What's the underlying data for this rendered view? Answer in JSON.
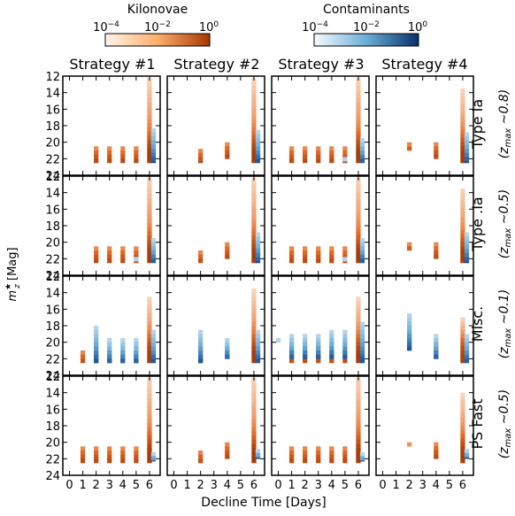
{
  "colorbars": {
    "kilonovae": {
      "title": "Kilonovae",
      "ticks": [
        "10^-4",
        "10^-2",
        "10^0"
      ],
      "color_light": "#fff5eb",
      "color_dark": "#d94801"
    },
    "contaminants": {
      "title": "Contaminants",
      "ticks": [
        "10^-4",
        "10^-2",
        "10^0"
      ],
      "color_light": "#f7fbff",
      "color_dark": "#08306b"
    }
  },
  "strategies": [
    "Strategy #1",
    "Strategy #2",
    "Strategy #3",
    "Strategy #4"
  ],
  "rows": [
    {
      "label": "Type Ia",
      "zlabel": "(z_max ~0.8)"
    },
    {
      "label": "Type .Ia",
      "zlabel": "(z_max ~0.5)"
    },
    {
      "label": "Misc.",
      "zlabel": "(z_max ~0.1)"
    },
    {
      "label": "PS Fast",
      "zlabel": "(z_max ~0.5)"
    }
  ],
  "ylabel": "m_z^* [Mag]",
  "xlabel": "Decline Time [Days]",
  "chart_data": {
    "type": "heatmap",
    "x_ticks": [
      "0",
      "1",
      "2",
      "3",
      "4",
      "5",
      "6"
    ],
    "y_ticks": [
      "12",
      "14",
      "16",
      "18",
      "20",
      "22",
      "24"
    ],
    "xlim": [
      -0.5,
      6.8
    ],
    "ylim": [
      24,
      12
    ],
    "y_inverted": true,
    "bin_width_days": 0.35,
    "bin_height_mag": 0.5,
    "cells": [
      {
        "row": 0,
        "col": 0,
        "kn": [
          [
            2,
            20.5,
            22.5
          ],
          [
            3,
            20.5,
            22.5
          ],
          [
            4,
            20.5,
            22.5
          ],
          [
            5,
            20.5,
            22.5
          ],
          [
            6,
            12.2,
            22.5
          ]
        ],
        "cont": [
          [
            6.3,
            18.3,
            22.5
          ]
        ]
      },
      {
        "row": 0,
        "col": 1,
        "kn": [
          [
            2,
            20.8,
            22.5
          ],
          [
            4,
            20,
            22
          ],
          [
            6,
            12.2,
            22.5
          ]
        ],
        "cont": [
          [
            6.3,
            18.5,
            22.5
          ]
        ]
      },
      {
        "row": 0,
        "col": 2,
        "kn": [
          [
            1,
            20.5,
            22.5
          ],
          [
            2,
            20.5,
            22.5
          ],
          [
            3,
            20.5,
            22.5
          ],
          [
            4,
            20.5,
            22.5
          ],
          [
            5,
            20.5,
            22.5
          ],
          [
            6,
            12.2,
            22.5
          ]
        ],
        "cont": [
          [
            5,
            21.8,
            22.3
          ],
          [
            6.3,
            19.5,
            22.5
          ]
        ]
      },
      {
        "row": 0,
        "col": 3,
        "kn": [
          [
            2,
            20,
            21
          ],
          [
            4,
            20,
            22
          ],
          [
            6,
            13.5,
            22.5
          ]
        ],
        "cont": [
          [
            6.3,
            18.8,
            22.5
          ]
        ]
      },
      {
        "row": 1,
        "col": 0,
        "kn": [
          [
            2,
            20.5,
            22.5
          ],
          [
            3,
            20.5,
            22.5
          ],
          [
            4,
            20.5,
            22.5
          ],
          [
            5,
            20.5,
            22.5
          ],
          [
            6,
            12.2,
            22.5
          ]
        ],
        "cont": [
          [
            5,
            21.8,
            22.3
          ],
          [
            6.3,
            19.5,
            22.5
          ]
        ]
      },
      {
        "row": 1,
        "col": 1,
        "kn": [
          [
            2,
            21,
            22.5
          ],
          [
            4,
            20,
            22
          ],
          [
            6,
            12.2,
            22.5
          ]
        ],
        "cont": [
          [
            6.3,
            18.8,
            22.5
          ]
        ]
      },
      {
        "row": 1,
        "col": 2,
        "kn": [
          [
            1,
            20.5,
            22.5
          ],
          [
            2,
            20.5,
            22.5
          ],
          [
            3,
            20.5,
            22.5
          ],
          [
            4,
            20.5,
            22.5
          ],
          [
            5,
            20.5,
            22.5
          ],
          [
            6,
            12.2,
            22.5
          ]
        ],
        "cont": [
          [
            5,
            21.8,
            22.3
          ],
          [
            6.3,
            19.5,
            22.5
          ]
        ]
      },
      {
        "row": 1,
        "col": 3,
        "kn": [
          [
            2,
            20,
            21
          ],
          [
            4,
            20,
            22
          ],
          [
            6,
            13.5,
            22.5
          ]
        ],
        "cont": [
          [
            6.3,
            18.8,
            22.5
          ]
        ]
      },
      {
        "row": 2,
        "col": 0,
        "kn": [
          [
            1,
            21,
            22.5
          ],
          [
            2,
            21,
            22.5
          ],
          [
            3,
            21,
            22.5
          ],
          [
            4,
            21,
            22.5
          ],
          [
            5,
            21,
            22.5
          ],
          [
            6,
            14.5,
            22.5
          ]
        ],
        "cont": [
          [
            2,
            18,
            22.5
          ],
          [
            3,
            19.5,
            22.5
          ],
          [
            4,
            19.5,
            22.5
          ],
          [
            5,
            19.5,
            22.5
          ],
          [
            6.3,
            18.5,
            22.5
          ]
        ]
      },
      {
        "row": 2,
        "col": 1,
        "kn": [
          [
            2,
            21,
            22.5
          ],
          [
            4,
            20.5,
            22
          ],
          [
            6,
            13.5,
            22.5
          ]
        ],
        "cont": [
          [
            2,
            18.5,
            22.5
          ],
          [
            4,
            19.5,
            22
          ],
          [
            6.3,
            18.5,
            22.5
          ]
        ]
      },
      {
        "row": 2,
        "col": 2,
        "kn": [
          [
            1,
            21,
            22.5
          ],
          [
            2,
            21,
            22.5
          ],
          [
            3,
            21,
            22.5
          ],
          [
            4,
            21,
            22.5
          ],
          [
            5,
            21,
            22.5
          ],
          [
            6,
            14.5,
            22.5
          ]
        ],
        "cont": [
          [
            0,
            19.5,
            20
          ],
          [
            1,
            19,
            22
          ],
          [
            2,
            19,
            22
          ],
          [
            3,
            19,
            22
          ],
          [
            4,
            18.5,
            22
          ],
          [
            5,
            18.5,
            22
          ],
          [
            6.3,
            17.5,
            22.5
          ]
        ]
      },
      {
        "row": 2,
        "col": 3,
        "kn": [
          [
            2,
            20.5,
            21
          ],
          [
            4,
            20,
            22
          ],
          [
            6,
            17,
            22.5
          ]
        ],
        "cont": [
          [
            2,
            16.5,
            21
          ],
          [
            4,
            19,
            22
          ],
          [
            6.3,
            19,
            22.5
          ]
        ]
      },
      {
        "row": 3,
        "col": 0,
        "kn": [
          [
            1,
            20.5,
            22.5
          ],
          [
            2,
            20.5,
            22.5
          ],
          [
            3,
            20.5,
            22.5
          ],
          [
            4,
            20.5,
            22.5
          ],
          [
            5,
            20.5,
            22.5
          ],
          [
            6,
            12.2,
            22.5
          ]
        ],
        "cont": [
          [
            6.3,
            21.2,
            22.3
          ]
        ]
      },
      {
        "row": 3,
        "col": 1,
        "kn": [
          [
            2,
            21,
            22.5
          ],
          [
            4,
            20,
            22
          ],
          [
            6,
            12.2,
            22.5
          ]
        ],
        "cont": [
          [
            6.3,
            20.8,
            22
          ]
        ]
      },
      {
        "row": 3,
        "col": 2,
        "kn": [
          [
            1,
            20.5,
            22.5
          ],
          [
            2,
            20.5,
            22.5
          ],
          [
            3,
            20.5,
            22.5
          ],
          [
            4,
            20.5,
            22.5
          ],
          [
            5,
            20.5,
            22.5
          ],
          [
            6,
            12.2,
            22.5
          ]
        ],
        "cont": [
          [
            6.3,
            21.2,
            22.3
          ]
        ]
      },
      {
        "row": 3,
        "col": 3,
        "kn": [
          [
            2,
            20,
            20.5
          ],
          [
            4,
            20,
            22
          ],
          [
            6,
            14,
            22.5
          ]
        ],
        "cont": [
          [
            6.3,
            20.8,
            22
          ]
        ]
      }
    ]
  }
}
